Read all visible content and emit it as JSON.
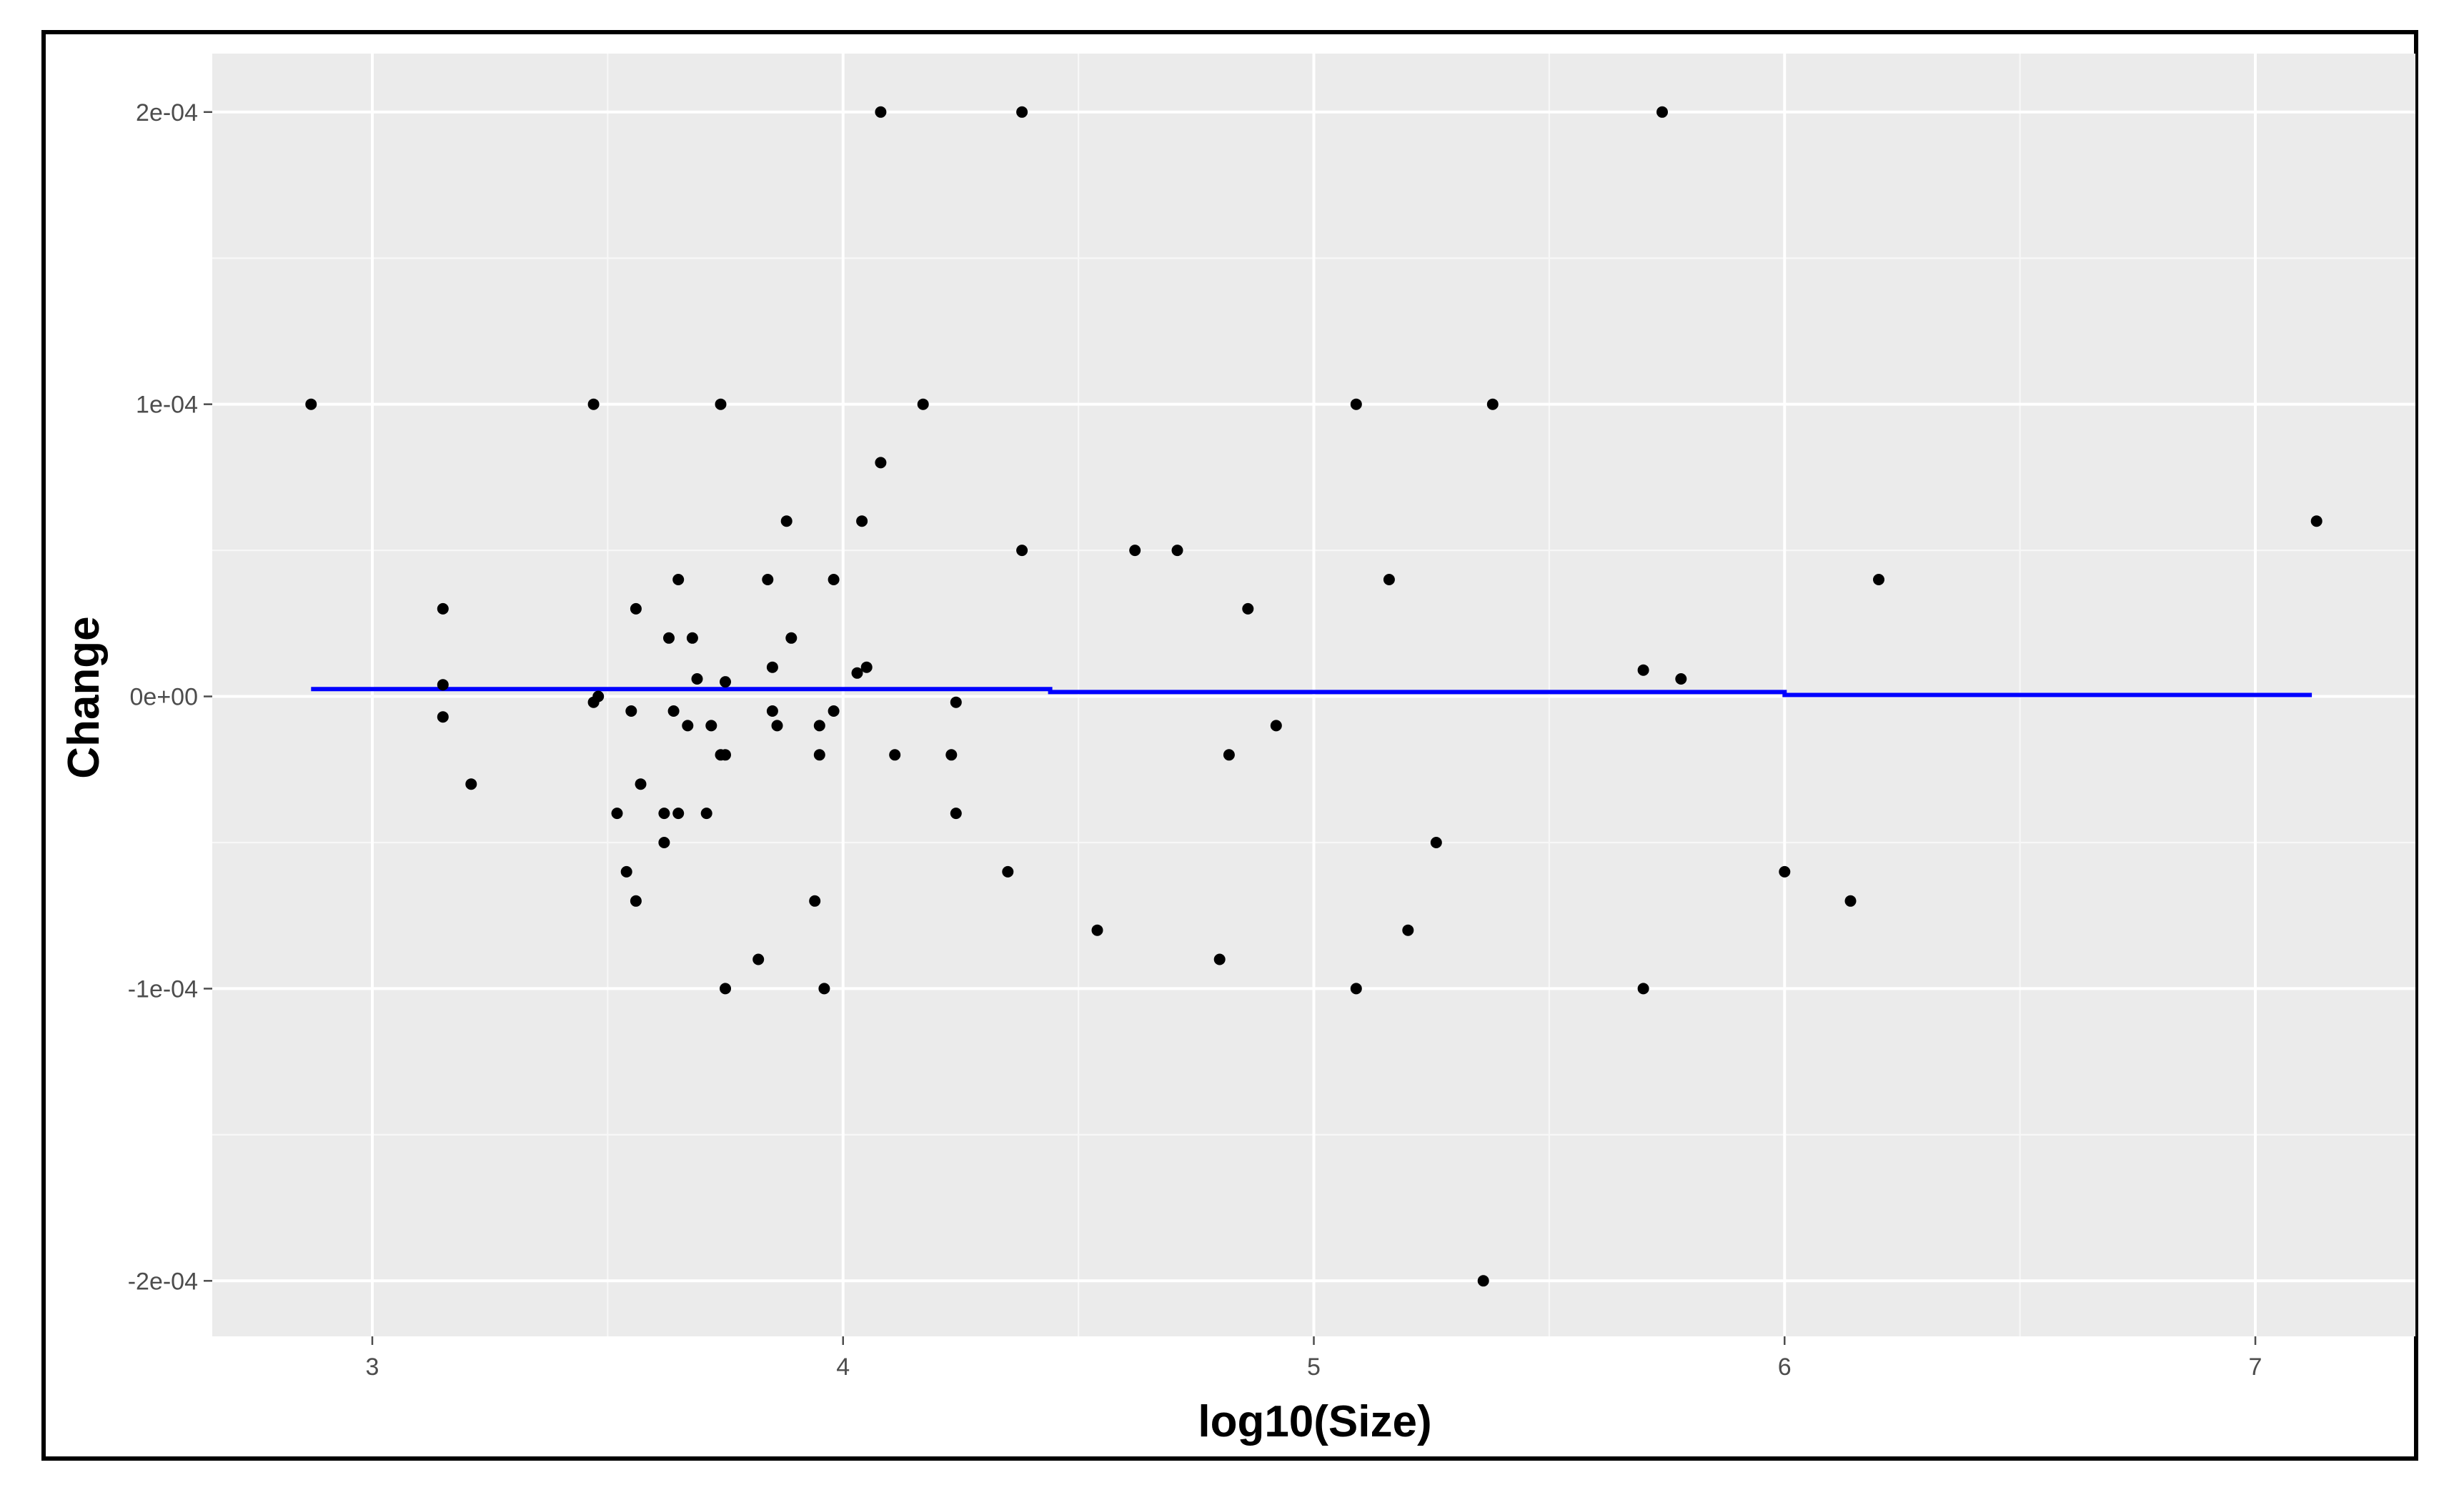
{
  "chart_data": {
    "type": "scatter",
    "title": "",
    "xlabel": "log10(Size)",
    "ylabel": "Change",
    "xlim": [
      2.66,
      7.34
    ],
    "ylim": [
      -0.000219,
      0.00022
    ],
    "x_ticks": [
      3,
      4,
      5,
      6,
      7
    ],
    "x_tick_labels": [
      "3",
      "4",
      "5",
      "6",
      "7"
    ],
    "y_ticks": [
      -0.0002,
      -0.0001,
      0,
      0.0001,
      0.0002
    ],
    "y_tick_labels": [
      "-2e-04",
      "-1e-04",
      "0e+00",
      "1e-04",
      "2e-04"
    ],
    "grid": true,
    "legend": "none",
    "point_color": "#000000",
    "trend_color": "#0000ff",
    "panel_color": "#ebebeb",
    "series": [
      {
        "points": [
          [
            2.87,
            0.0001
          ],
          [
            3.15,
            3e-05
          ],
          [
            3.15,
            4e-06
          ],
          [
            3.15,
            -7e-06
          ],
          [
            3.21,
            -3e-05
          ],
          [
            3.47,
            0.0001
          ],
          [
            3.47,
            -2e-06
          ],
          [
            3.48,
            0
          ],
          [
            3.52,
            -4e-05
          ],
          [
            3.54,
            -6e-05
          ],
          [
            3.55,
            -5e-06
          ],
          [
            3.56,
            3e-05
          ],
          [
            3.56,
            -7e-05
          ],
          [
            3.57,
            -3e-05
          ],
          [
            3.62,
            -4e-05
          ],
          [
            3.62,
            -5e-05
          ],
          [
            3.63,
            2e-05
          ],
          [
            3.64,
            -5e-06
          ],
          [
            3.65,
            4e-05
          ],
          [
            3.65,
            -4e-05
          ],
          [
            3.67,
            -1e-05
          ],
          [
            3.68,
            2e-05
          ],
          [
            3.69,
            6e-06
          ],
          [
            3.71,
            -4e-05
          ],
          [
            3.72,
            -1e-05
          ],
          [
            3.74,
            0.0001
          ],
          [
            3.74,
            -2e-05
          ],
          [
            3.75,
            5e-06
          ],
          [
            3.75,
            -2e-05
          ],
          [
            3.75,
            -0.0001
          ],
          [
            3.82,
            -9e-05
          ],
          [
            3.84,
            4e-05
          ],
          [
            3.85,
            1e-05
          ],
          [
            3.85,
            -5e-06
          ],
          [
            3.86,
            -1e-05
          ],
          [
            3.88,
            6e-05
          ],
          [
            3.89,
            2e-05
          ],
          [
            3.94,
            -7e-05
          ],
          [
            3.95,
            -1e-05
          ],
          [
            3.95,
            -2e-05
          ],
          [
            3.96,
            -0.0001
          ],
          [
            3.98,
            4e-05
          ],
          [
            3.98,
            -5e-06
          ],
          [
            4.03,
            8e-06
          ],
          [
            4.04,
            6e-05
          ],
          [
            4.05,
            1e-05
          ],
          [
            4.08,
            0.0002
          ],
          [
            4.08,
            8e-05
          ],
          [
            4.11,
            -2e-05
          ],
          [
            4.17,
            0.0001
          ],
          [
            4.23,
            -2e-05
          ],
          [
            4.24,
            -2e-06
          ],
          [
            4.24,
            -4e-05
          ],
          [
            4.35,
            -6e-05
          ],
          [
            4.38,
            0.0002
          ],
          [
            4.38,
            5e-05
          ],
          [
            4.54,
            -8e-05
          ],
          [
            4.62,
            5e-05
          ],
          [
            4.71,
            5e-05
          ],
          [
            4.8,
            -9e-05
          ],
          [
            4.82,
            -2e-05
          ],
          [
            4.86,
            3e-05
          ],
          [
            4.92,
            -1e-05
          ],
          [
            5.09,
            0.0001
          ],
          [
            5.09,
            -0.0001
          ],
          [
            5.16,
            4e-05
          ],
          [
            5.2,
            -8e-05
          ],
          [
            5.26,
            -5e-05
          ],
          [
            5.36,
            -0.0002
          ],
          [
            5.38,
            0.0001
          ],
          [
            5.7,
            9e-06
          ],
          [
            5.7,
            -0.0001
          ],
          [
            5.74,
            0.0002
          ],
          [
            5.78,
            6e-06
          ],
          [
            6.0,
            -6e-05
          ],
          [
            6.14,
            -7e-05
          ],
          [
            6.2,
            4e-05
          ],
          [
            7.13,
            6e-05
          ]
        ]
      }
    ],
    "trend_line": {
      "x": [
        2.87,
        4.44,
        4.44,
        6.0,
        6.0,
        7.12
      ],
      "y": [
        2.5e-06,
        2.5e-06,
        1.5e-06,
        1.5e-06,
        5e-07,
        5e-07
      ]
    }
  }
}
